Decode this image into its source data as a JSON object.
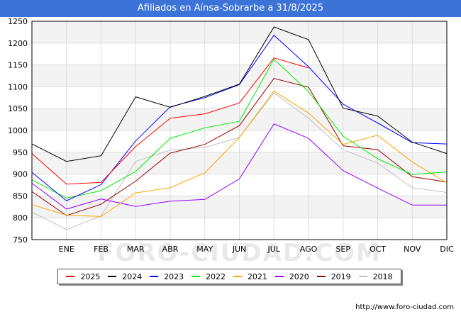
{
  "chart_data": {
    "type": "line",
    "title": "Afiliados en Aínsa-Sobrarbe a 31/8/2025",
    "x": [
      "",
      "ENE",
      "FEB",
      "MAR",
      "ABR",
      "MAY",
      "JUN",
      "JUL",
      "AGO",
      "SEP",
      "OCT",
      "NOV",
      "DIC"
    ],
    "ylim": [
      750,
      1250
    ],
    "yticks": [
      750,
      800,
      850,
      900,
      950,
      1000,
      1050,
      1100,
      1150,
      1200,
      1250
    ],
    "grid": true,
    "legend_position": "bottom",
    "series": [
      {
        "name": "2025",
        "color": "#ff0000",
        "values": [
          947,
          877,
          881,
          963,
          1028,
          1038,
          1063,
          1166,
          1143,
          null,
          null,
          null,
          null
        ]
      },
      {
        "name": "2024",
        "color": "#000000",
        "values": [
          969,
          929,
          942,
          1077,
          1053,
          1078,
          1106,
          1237,
          1208,
          1051,
          1033,
          973,
          947
        ]
      },
      {
        "name": "2023",
        "color": "#0000ff",
        "values": [
          904,
          839,
          876,
          976,
          1054,
          1075,
          1105,
          1218,
          1146,
          1060,
          1017,
          972,
          969
        ]
      },
      {
        "name": "2022",
        "color": "#00ee00",
        "values": [
          887,
          845,
          862,
          906,
          982,
          1006,
          1021,
          1163,
          1089,
          987,
          935,
          899,
          905
        ]
      },
      {
        "name": "2021",
        "color": "#ffa500",
        "values": [
          830,
          806,
          803,
          857,
          869,
          903,
          984,
          1090,
          1040,
          968,
          989,
          928,
          880
        ]
      },
      {
        "name": "2020",
        "color": "#9900ff",
        "values": [
          879,
          820,
          843,
          826,
          838,
          842,
          889,
          1015,
          982,
          908,
          868,
          829,
          829
        ]
      },
      {
        "name": "2019",
        "color": "#990000",
        "values": [
          860,
          805,
          831,
          884,
          948,
          968,
          1011,
          1119,
          1099,
          965,
          956,
          894,
          882
        ]
      },
      {
        "name": "2018",
        "color": "#c0c0c0",
        "values": [
          813,
          773,
          804,
          929,
          955,
          961,
          984,
          1086,
          1028,
          956,
          925,
          869,
          858
        ]
      }
    ],
    "watermark": "FORO-CIUDAD.COM"
  },
  "source_url": "http://www.foro-ciudad.com"
}
